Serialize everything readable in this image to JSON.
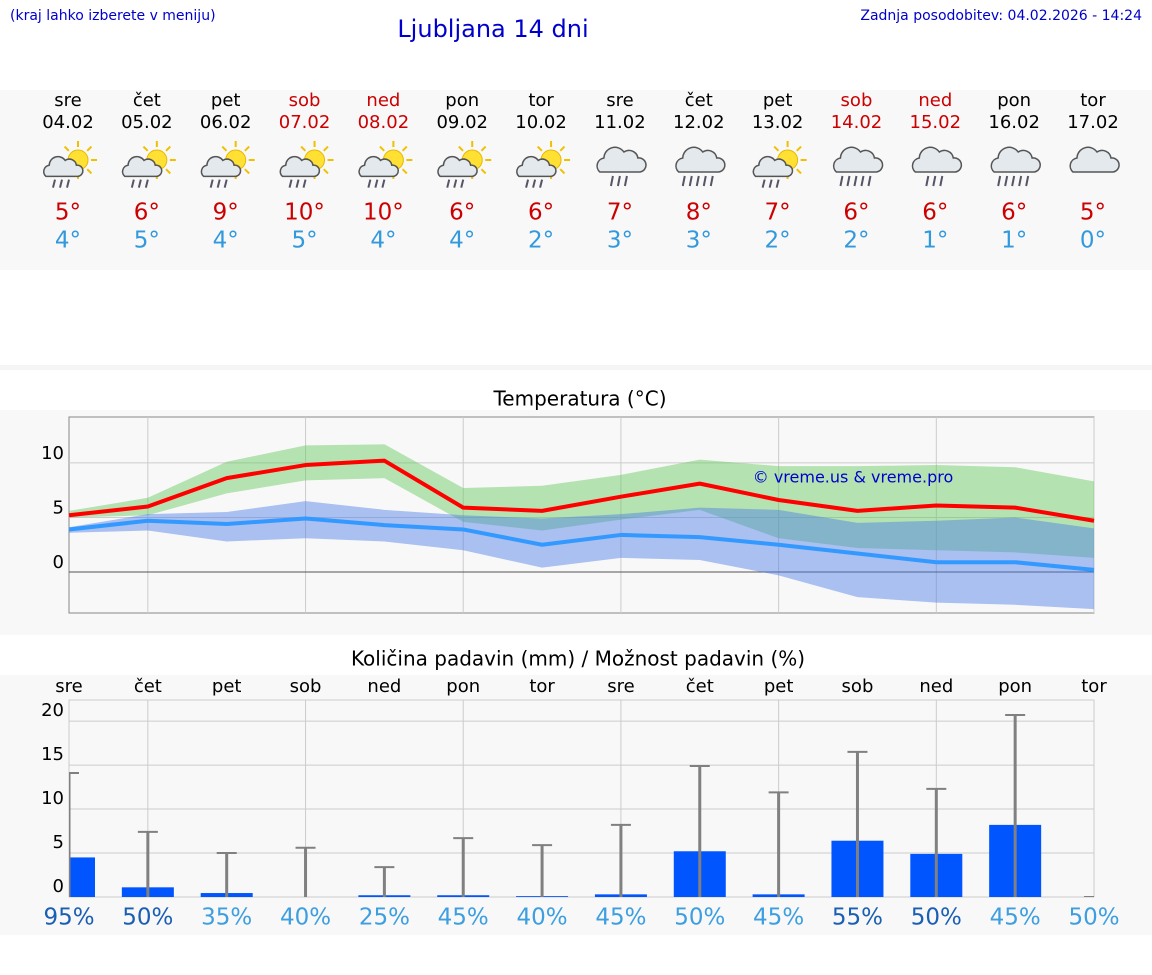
{
  "header": {
    "note": "(kraj lahko izberete v meniju)",
    "title": "Ljubljana 14 dni",
    "updated": "Zadnja posodobitev: 04.02.2026 - 14:24"
  },
  "days": [
    {
      "day": "sre",
      "date": "04.02",
      "icon": "sun-rain",
      "max": "5°",
      "min": "4°",
      "color": "#000000"
    },
    {
      "day": "čet",
      "date": "05.02",
      "icon": "sun-rain",
      "max": "6°",
      "min": "5°",
      "color": "#000000"
    },
    {
      "day": "pet",
      "date": "06.02",
      "icon": "sun-rain",
      "max": "9°",
      "min": "4°",
      "color": "#000000"
    },
    {
      "day": "sob",
      "date": "07.02",
      "icon": "sun-rain",
      "max": "10°",
      "min": "5°",
      "color": "#cc0000"
    },
    {
      "day": "ned",
      "date": "08.02",
      "icon": "sun-rain",
      "max": "10°",
      "min": "4°",
      "color": "#cc0000"
    },
    {
      "day": "pon",
      "date": "09.02",
      "icon": "sun-rain",
      "max": "6°",
      "min": "4°",
      "color": "#000000"
    },
    {
      "day": "tor",
      "date": "10.02",
      "icon": "sun-rain",
      "max": "6°",
      "min": "2°",
      "color": "#000000"
    },
    {
      "day": "sre",
      "date": "11.02",
      "icon": "cloud-rain",
      "max": "7°",
      "min": "3°",
      "color": "#000000"
    },
    {
      "day": "čet",
      "date": "12.02",
      "icon": "cloud-heavy-rain",
      "max": "8°",
      "min": "3°",
      "color": "#000000"
    },
    {
      "day": "pet",
      "date": "13.02",
      "icon": "sun-rain",
      "max": "7°",
      "min": "2°",
      "color": "#000000"
    },
    {
      "day": "sob",
      "date": "14.02",
      "icon": "cloud-heavy-rain",
      "max": "6°",
      "min": "2°",
      "color": "#cc0000"
    },
    {
      "day": "ned",
      "date": "15.02",
      "icon": "cloud-rain",
      "max": "6°",
      "min": "1°",
      "color": "#cc0000"
    },
    {
      "day": "pon",
      "date": "16.02",
      "icon": "cloud-heavy-rain",
      "max": "6°",
      "min": "1°",
      "color": "#000000"
    },
    {
      "day": "tor",
      "date": "17.02",
      "icon": "cloud",
      "max": "5°",
      "min": "0°",
      "color": "#000000"
    }
  ],
  "chart_data": [
    {
      "type": "line",
      "title": "Temperatura (°C)",
      "categories": [
        null,
        null,
        null,
        null,
        null,
        null,
        null,
        null,
        null,
        null,
        null,
        null,
        null,
        null
      ],
      "series": [
        {
          "color": "#ff0000",
          "values": [
            5.2,
            6.0,
            8.6,
            9.8,
            10.2,
            5.9,
            5.6,
            6.9,
            8.1,
            6.6,
            5.6,
            6.1,
            5.9,
            4.7
          ]
        },
        {
          "color": "#3399ff",
          "values": [
            3.9,
            4.7,
            4.4,
            4.9,
            4.3,
            3.9,
            2.5,
            3.4,
            3.2,
            2.5,
            1.7,
            0.9,
            0.9,
            0.2
          ]
        }
      ],
      "bands": [
        {
          "color": "#64c85a",
          "high": [
            5.6,
            6.8,
            10.1,
            11.6,
            11.7,
            7.7,
            7.9,
            8.9,
            10.3,
            9.7,
            9.7,
            9.8,
            9.6,
            8.3
          ],
          "low": [
            5.0,
            5.2,
            7.2,
            8.4,
            8.6,
            4.6,
            3.8,
            4.8,
            5.7,
            3.1,
            2.2,
            2.0,
            1.8,
            1.3
          ]
        },
        {
          "color": "#4a7de8",
          "high": [
            4.1,
            5.3,
            5.5,
            6.5,
            5.7,
            5.2,
            4.9,
            5.3,
            5.9,
            5.7,
            4.5,
            4.7,
            5.0,
            4.0
          ],
          "low": [
            3.6,
            3.8,
            2.8,
            3.1,
            2.8,
            2.0,
            0.4,
            1.3,
            1.1,
            -0.3,
            -2.3,
            -2.8,
            -3.0,
            -3.4
          ]
        }
      ],
      "ylim": [
        -3.75,
        14.2
      ],
      "yticks": [
        0,
        5,
        10
      ],
      "grid": true,
      "annotation": "© vreme.us & vreme.pro"
    },
    {
      "type": "bar",
      "title": "Količina padavin (mm) / Možnost padavin (%)",
      "categories": [
        "sre",
        "čet",
        "pet",
        "sob",
        "ned",
        "pon",
        "tor",
        "sre",
        "čet",
        "pet",
        "sob",
        "ned",
        "pon",
        "tor"
      ],
      "values": [
        4.5,
        1.1,
        0.45,
        0,
        0.2,
        0.2,
        0.1,
        0.3,
        5.2,
        0.3,
        6.4,
        4.9,
        8.2,
        0
      ],
      "color": "#0055ff",
      "max_values": [
        14.1,
        7.4,
        5.0,
        5.6,
        3.4,
        6.7,
        5.9,
        8.2,
        14.9,
        11.9,
        16.5,
        12.3,
        20.7,
        0
      ],
      "max_color": "#808080",
      "probability": {
        "values": [
          95,
          50,
          35,
          40,
          25,
          45,
          40,
          45,
          50,
          45,
          55,
          50,
          45,
          50
        ],
        "value_labels": [
          "95%",
          "50%",
          "35%",
          "40%",
          "25%",
          "45%",
          "40%",
          "45%",
          "50%",
          "45%",
          "55%",
          "50%",
          "45%",
          "50%"
        ],
        "colors": [
          "#1a5fb4",
          "#1a5fb4",
          "#3d9ee0",
          "#3d9ee0",
          "#3d9ee0",
          "#3d9ee0",
          "#3d9ee0",
          "#3d9ee0",
          "#3d9ee0",
          "#3d9ee0",
          "#1a5fb4",
          "#1a5fb4",
          "#3d9ee0",
          "#3d9ee0"
        ]
      },
      "ylim": [
        0,
        22.4
      ],
      "yticks": [
        0,
        5,
        10,
        15,
        20
      ],
      "grid": true
    }
  ]
}
